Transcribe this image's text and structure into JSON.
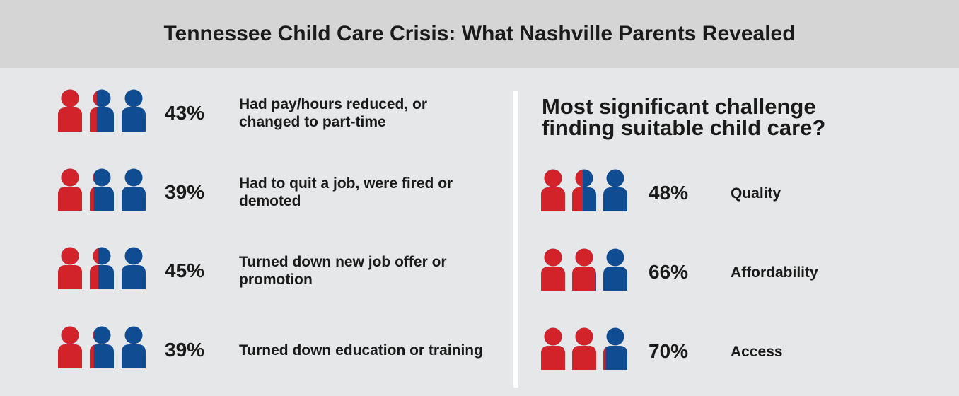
{
  "header": {
    "title": "Tennessee Child Care Crisis: What Nashville Parents Revealed"
  },
  "chart_data": [
    {
      "type": "pictogram",
      "icon_count": 3,
      "colors": [
        "#d2232a",
        "#0f4c92"
      ],
      "categories": [
        "Had pay/hours reduced, or changed to part-time",
        "Had to quit a job, were fired or demoted",
        "Turned down new job offer or promotion",
        "Turned down education or training"
      ],
      "values": [
        43,
        39,
        45,
        39
      ],
      "value_labels": [
        "43%",
        "39%",
        "45%",
        "39%"
      ]
    },
    {
      "type": "pictogram",
      "icon_count": 3,
      "colors": [
        "#d2232a",
        "#0f4c92"
      ],
      "title": "Most significant challenge finding suitable child care?",
      "categories": [
        "Quality",
        "Affordability",
        "Access"
      ],
      "values": [
        48,
        66,
        70
      ],
      "value_labels": [
        "48%",
        "66%",
        "70%"
      ]
    }
  ]
}
